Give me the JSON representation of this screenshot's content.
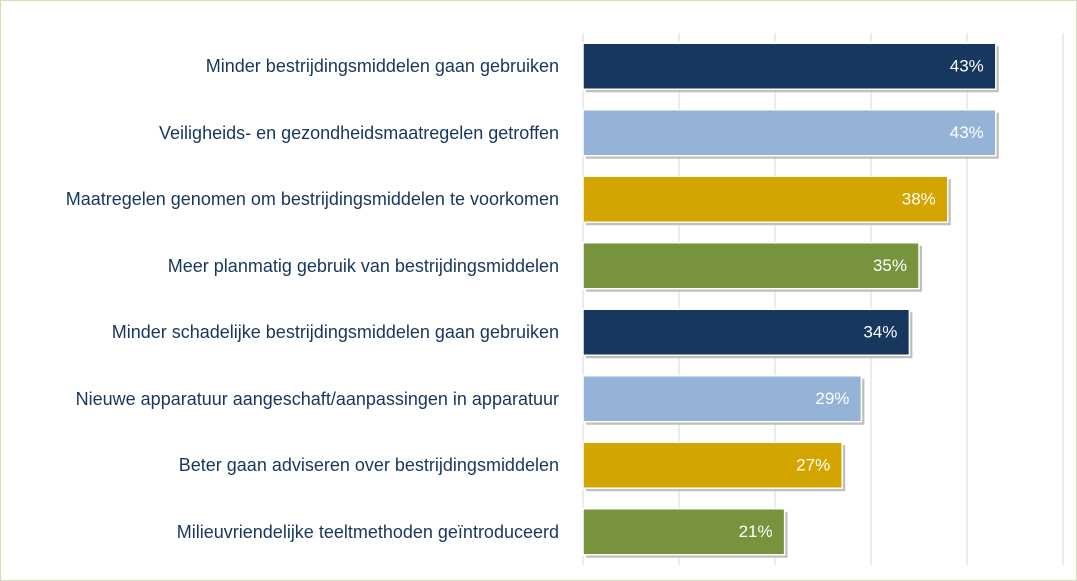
{
  "chart_data": {
    "type": "bar",
    "orientation": "horizontal",
    "categories": [
      "Minder bestrijdingsmiddelen gaan gebruiken",
      "Veiligheids- en gezondheidsmaatregelen getroffen",
      "Maatregelen genomen om bestrijdingsmiddelen te voorkomen",
      "Meer planmatig gebruik van bestrijdingsmiddelen",
      "Minder schadelijke bestrijdingsmiddelen gaan gebruiken",
      "Nieuwe apparatuur aangeschaft/aanpassingen in apparatuur",
      "Beter gaan adviseren over bestrijdingsmiddelen",
      "Milieuvriendelijke teeltmethoden geïntroduceerd"
    ],
    "values": [
      43,
      43,
      38,
      35,
      34,
      29,
      27,
      21
    ],
    "value_labels": [
      "43%",
      "43%",
      "38%",
      "35%",
      "34%",
      "29%",
      "27%",
      "21%"
    ],
    "colors": [
      "#17375e",
      "#95b3d7",
      "#d4a500",
      "#77933c",
      "#17375e",
      "#95b3d7",
      "#d4a500",
      "#77933c"
    ],
    "xlim": [
      0,
      50
    ],
    "xticks": [
      0,
      10,
      20,
      30,
      40,
      50
    ],
    "grid": true
  }
}
